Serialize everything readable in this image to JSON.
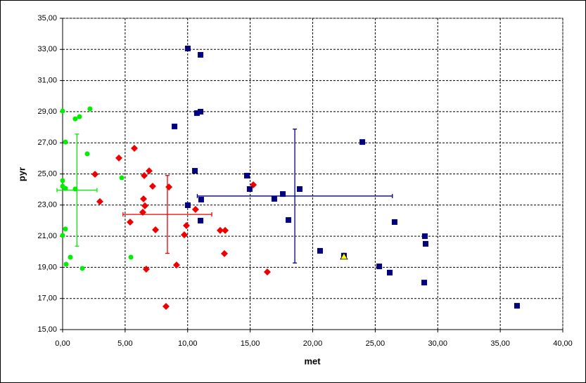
{
  "chart_data": {
    "type": "scatter",
    "x_label": "met",
    "y_label": "pyr",
    "xlim": [
      0,
      40
    ],
    "ylim": [
      15,
      35
    ],
    "xticks": [
      {
        "value": 0,
        "label": "0,00"
      },
      {
        "value": 5,
        "label": "5,00"
      },
      {
        "value": 10,
        "label": "10,00"
      },
      {
        "value": 15,
        "label": "15,00"
      },
      {
        "value": 20,
        "label": "20,00"
      },
      {
        "value": 25,
        "label": "25,00"
      },
      {
        "value": 30,
        "label": "30,00"
      },
      {
        "value": 35,
        "label": "35,00"
      },
      {
        "value": 40,
        "label": "40,00"
      }
    ],
    "yticks": [
      {
        "value": 15,
        "label": "15,00"
      },
      {
        "value": 17,
        "label": "17,00"
      },
      {
        "value": 19,
        "label": "19,00"
      },
      {
        "value": 21,
        "label": "21,00"
      },
      {
        "value": 23,
        "label": "23,00"
      },
      {
        "value": 25,
        "label": "25,00"
      },
      {
        "value": 27,
        "label": "27,00"
      },
      {
        "value": 29,
        "label": "29,00"
      },
      {
        "value": 31,
        "label": "31,00"
      },
      {
        "value": 33,
        "label": "33,00"
      },
      {
        "value": 35,
        "label": "35,00"
      }
    ],
    "grid": true,
    "series": [
      {
        "color": "#00ee00",
        "marker": "circle",
        "x": [
          0.0,
          1.01,
          1.35,
          2.19,
          0.23,
          1.97,
          0.0,
          0.0,
          0.23,
          1.01,
          4.73,
          0.23,
          0.0,
          0.62,
          0.28,
          1.58,
          5.46
        ],
        "values": [
          29.04,
          28.54,
          28.68,
          29.18,
          27.05,
          26.29,
          24.57,
          24.21,
          24.07,
          24.03,
          24.75,
          21.46,
          21.05,
          19.65,
          19.2,
          18.93,
          19.65
        ]
      },
      {
        "color": "#ee0000",
        "marker": "diamond",
        "x": [
          4.5,
          5.74,
          2.59,
          2.98,
          6.53,
          6.92,
          7.2,
          6.47,
          6.58,
          6.41,
          5.4,
          7.43,
          9.73,
          9.9,
          10.63,
          8.5,
          9.11,
          6.69,
          8.27,
          12.6,
          13.0,
          12.94,
          15.25,
          16.37
        ],
        "values": [
          26.02,
          26.65,
          24.98,
          23.22,
          24.89,
          25.2,
          24.21,
          23.4,
          22.95,
          22.54,
          21.91,
          21.41,
          21.09,
          21.68,
          22.72,
          24.16,
          19.15,
          18.88,
          16.49,
          21.37,
          21.37,
          19.88,
          24.3,
          18.7
        ]
      },
      {
        "color": "#000080",
        "marker": "square",
        "x": [
          10.01,
          11.03,
          10.74,
          11.03,
          8.95,
          10.58,
          10.01,
          11.08,
          11.03,
          14.74,
          14.96,
          16.93,
          17.61,
          18.96,
          18.06,
          20.59,
          23.97,
          26.55,
          28.97,
          29.03,
          25.32,
          26.16,
          28.92,
          36.34,
          22.5
        ],
        "values": [
          33.06,
          32.65,
          28.91,
          29.0,
          28.05,
          25.2,
          22.99,
          23.35,
          22.0,
          24.89,
          24.03,
          23.4,
          23.71,
          24.03,
          22.04,
          20.06,
          27.05,
          21.91,
          21.0,
          20.51,
          19.06,
          18.66,
          18.02,
          16.53,
          19.75
        ]
      },
      {
        "color": "#ffff00",
        "marker": "triangle",
        "x": [
          22.5
        ],
        "values": [
          19.7
        ]
      }
    ],
    "error_bars": [
      {
        "color": "#00ee00",
        "x": 1.15,
        "y": 23.96,
        "xerr": 1.6,
        "yerr": 3.6
      },
      {
        "color": "#ee0000",
        "x": 8.38,
        "y": 22.4,
        "xerr": 3.55,
        "yerr": 2.5
      },
      {
        "color": "#000080",
        "x": 18.57,
        "y": 23.58,
        "xerr": 7.8,
        "yerr": 4.3
      }
    ]
  }
}
